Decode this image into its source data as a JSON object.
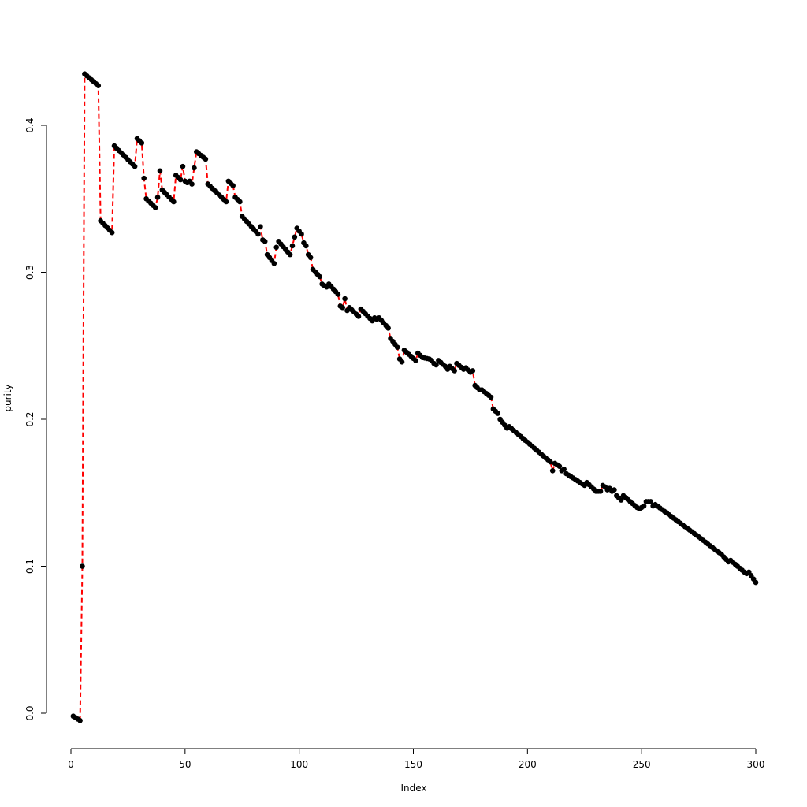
{
  "chart_data": {
    "type": "line",
    "title": "",
    "xlabel": "Index",
    "ylabel": "purity",
    "xlim": [
      0,
      300
    ],
    "ylim": [
      -0.0055,
      0.4355
    ],
    "xticks": [
      0,
      50,
      100,
      150,
      200,
      250,
      300
    ],
    "yticks": [
      0.0,
      0.1,
      0.2,
      0.3,
      0.4
    ],
    "xtick_labels": [
      "0",
      "50",
      "100",
      "150",
      "200",
      "250",
      "300"
    ],
    "ytick_labels": [
      "0.0",
      "0.1",
      "0.2",
      "0.3",
      "0.4"
    ],
    "grid": false,
    "point_color": "#000000",
    "line_color": "#ff0000",
    "line_style": "dashed",
    "knots": [
      [
        1,
        -0.002
      ],
      [
        4,
        -0.005
      ],
      [
        5,
        0.1
      ],
      [
        6,
        0.435
      ],
      [
        12,
        0.427
      ],
      [
        13,
        0.335
      ],
      [
        18,
        0.327
      ],
      [
        19,
        0.386
      ],
      [
        28,
        0.372
      ],
      [
        29,
        0.391
      ],
      [
        31,
        0.388
      ],
      [
        32,
        0.364
      ],
      [
        33,
        0.35
      ],
      [
        37,
        0.344
      ],
      [
        38,
        0.351
      ],
      [
        39,
        0.369
      ],
      [
        40,
        0.356
      ],
      [
        45,
        0.348
      ],
      [
        46,
        0.366
      ],
      [
        48,
        0.363
      ],
      [
        49,
        0.372
      ],
      [
        50,
        0.362
      ],
      [
        51,
        0.361
      ],
      [
        52,
        0.362
      ],
      [
        53,
        0.36
      ],
      [
        54,
        0.371
      ],
      [
        55,
        0.382
      ],
      [
        59,
        0.377
      ],
      [
        60,
        0.36
      ],
      [
        68,
        0.348
      ],
      [
        69,
        0.362
      ],
      [
        71,
        0.359
      ],
      [
        72,
        0.351
      ],
      [
        74,
        0.348
      ],
      [
        75,
        0.338
      ],
      [
        82,
        0.326
      ],
      [
        83,
        0.331
      ],
      [
        84,
        0.322
      ],
      [
        85,
        0.321
      ],
      [
        86,
        0.312
      ],
      [
        89,
        0.306
      ],
      [
        90,
        0.317
      ],
      [
        91,
        0.321
      ],
      [
        96,
        0.312
      ],
      [
        97,
        0.318
      ],
      [
        99,
        0.33
      ],
      [
        101,
        0.326
      ],
      [
        102,
        0.32
      ],
      [
        103,
        0.318
      ],
      [
        104,
        0.312
      ],
      [
        105,
        0.31
      ],
      [
        106,
        0.302
      ],
      [
        109,
        0.297
      ],
      [
        110,
        0.292
      ],
      [
        112,
        0.29
      ],
      [
        113,
        0.292
      ],
      [
        117,
        0.285
      ],
      [
        118,
        0.277
      ],
      [
        119,
        0.276
      ],
      [
        120,
        0.282
      ],
      [
        121,
        0.274
      ],
      [
        122,
        0.276
      ],
      [
        126,
        0.27
      ],
      [
        127,
        0.275
      ],
      [
        132,
        0.267
      ],
      [
        133,
        0.269
      ],
      [
        134,
        0.268
      ],
      [
        135,
        0.269
      ],
      [
        139,
        0.262
      ],
      [
        140,
        0.255
      ],
      [
        143,
        0.249
      ],
      [
        144,
        0.241
      ],
      [
        145,
        0.239
      ],
      [
        146,
        0.247
      ],
      [
        151,
        0.24
      ],
      [
        152,
        0.245
      ],
      [
        154,
        0.242
      ],
      [
        157,
        0.241
      ],
      [
        158,
        0.24
      ],
      [
        159,
        0.238
      ],
      [
        160,
        0.237
      ],
      [
        161,
        0.24
      ],
      [
        164,
        0.236
      ],
      [
        165,
        0.234
      ],
      [
        166,
        0.236
      ],
      [
        168,
        0.233
      ],
      [
        169,
        0.238
      ],
      [
        172,
        0.234
      ],
      [
        173,
        0.235
      ],
      [
        175,
        0.232
      ],
      [
        176,
        0.233
      ],
      [
        177,
        0.223
      ],
      [
        179,
        0.22
      ],
      [
        180,
        0.22
      ],
      [
        184,
        0.215
      ],
      [
        185,
        0.207
      ],
      [
        187,
        0.204
      ],
      [
        188,
        0.2
      ],
      [
        191,
        0.194
      ],
      [
        192,
        0.195
      ],
      [
        210,
        0.171
      ],
      [
        211,
        0.165
      ],
      [
        212,
        0.17
      ],
      [
        214,
        0.168
      ],
      [
        215,
        0.165
      ],
      [
        216,
        0.166
      ],
      [
        217,
        0.163
      ],
      [
        225,
        0.155
      ],
      [
        226,
        0.157
      ],
      [
        230,
        0.151
      ],
      [
        232,
        0.151
      ],
      [
        233,
        0.155
      ],
      [
        234,
        0.154
      ],
      [
        235,
        0.152
      ],
      [
        236,
        0.153
      ],
      [
        237,
        0.151
      ],
      [
        238,
        0.152
      ],
      [
        239,
        0.148
      ],
      [
        241,
        0.145
      ],
      [
        242,
        0.148
      ],
      [
        248,
        0.14
      ],
      [
        249,
        0.139
      ],
      [
        251,
        0.141
      ],
      [
        252,
        0.144
      ],
      [
        254,
        0.144
      ],
      [
        255,
        0.141
      ],
      [
        256,
        0.142
      ],
      [
        275,
        0.12
      ],
      [
        285,
        0.108
      ],
      [
        288,
        0.103
      ],
      [
        289,
        0.104
      ],
      [
        295,
        0.096
      ],
      [
        296,
        0.095
      ],
      [
        297,
        0.096
      ],
      [
        300,
        0.089
      ]
    ]
  }
}
